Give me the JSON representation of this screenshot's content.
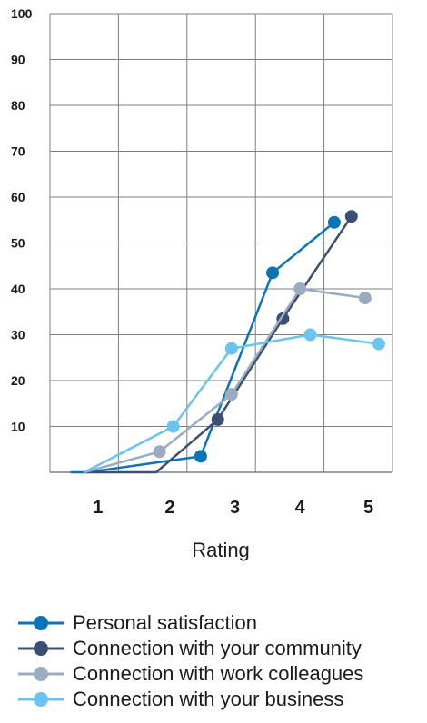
{
  "chart_data": {
    "type": "line",
    "xlabel": "Rating",
    "ylabel": "",
    "ylim": [
      0,
      100
    ],
    "y_ticks": [
      10,
      20,
      30,
      40,
      50,
      60,
      70,
      80,
      90,
      100
    ],
    "x_ticks": [
      "1",
      "2",
      "3",
      "4",
      "5"
    ],
    "grid": true,
    "legend_position": "bottom",
    "series": [
      {
        "name": "Personal satisfaction",
        "color": "#0a74b8",
        "points": [
          [
            0.8,
            0
          ],
          [
            1.05,
            0
          ],
          [
            2.7,
            3.5
          ],
          [
            3.75,
            43.5
          ],
          [
            4.65,
            54.5
          ]
        ],
        "markers": [
          [
            2.7,
            3.5
          ],
          [
            3.75,
            43.5
          ],
          [
            4.65,
            54.5
          ]
        ]
      },
      {
        "name": "Connection with your community",
        "color": "#3d4e73",
        "points": [
          [
            1.0,
            0
          ],
          [
            2.05,
            0
          ],
          [
            2.95,
            11.5
          ],
          [
            3.9,
            33.5
          ],
          [
            4.9,
            55.8
          ]
        ],
        "markers": [
          [
            2.95,
            11.5
          ],
          [
            3.9,
            33.5
          ],
          [
            4.9,
            55.8
          ]
        ]
      },
      {
        "name": "Connection with work colleagues",
        "color": "#9aadc0",
        "points": [
          [
            1.0,
            0
          ],
          [
            2.1,
            4.5
          ],
          [
            3.15,
            17
          ],
          [
            4.15,
            40
          ],
          [
            5.1,
            38
          ]
        ],
        "markers": [
          [
            2.1,
            4.5
          ],
          [
            3.15,
            17
          ],
          [
            4.15,
            40
          ],
          [
            5.1,
            38
          ]
        ]
      },
      {
        "name": "Connection with your business",
        "color": "#6cc3ee",
        "points": [
          [
            1.0,
            0
          ],
          [
            2.3,
            10
          ],
          [
            3.15,
            27
          ],
          [
            4.3,
            30
          ],
          [
            5.3,
            28
          ]
        ],
        "markers": [
          [
            2.3,
            10
          ],
          [
            3.15,
            27
          ],
          [
            4.3,
            30
          ],
          [
            5.3,
            28
          ]
        ]
      }
    ]
  }
}
